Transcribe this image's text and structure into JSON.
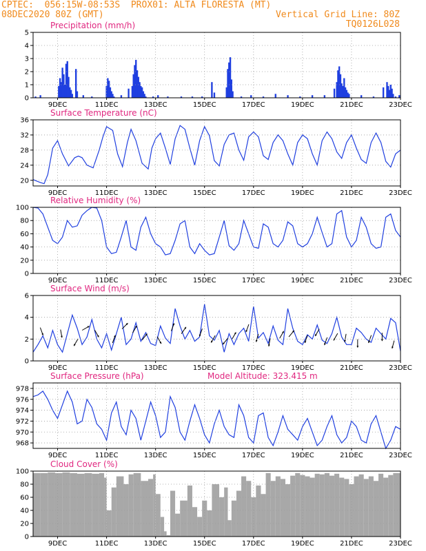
{
  "header": {
    "line1_left": "CPTEC:  056:15W-08:53S  PROX01: ALTA FLORESTA (MT)",
    "line2_left": "08DEC2020 80Z (GMT)",
    "line2_right": "Vertical Grid Line: 80Z",
    "line3_right": "TQ0126L028"
  },
  "colors": {
    "line": "#1f3fe0",
    "bar": "#1f3fe0",
    "cloud": "#a8a8a8",
    "title": "#e0267f",
    "header": "#f08a1c"
  },
  "x_axis": {
    "range_days": [
      8,
      23
    ],
    "tick_days": [
      9,
      11,
      13,
      15,
      17,
      19,
      21,
      23
    ],
    "tick_labels": [
      "9DEC",
      "11DEC",
      "13DEC",
      "15DEC",
      "17DEC",
      "19DEC",
      "21DEC",
      "23DEC"
    ]
  },
  "chart_data": [
    {
      "id": "precip",
      "type": "bar",
      "title": "Precipitation (mm/h)",
      "ylim": [
        0,
        5
      ],
      "yticks": [
        0,
        1,
        2,
        3,
        4,
        5
      ],
      "ytick_labels": [
        "0",
        "1",
        "2",
        "3",
        "4",
        "5"
      ],
      "x_unit": "day of December 2020",
      "x": [
        8.1,
        8.3,
        9.05,
        9.1,
        9.15,
        9.2,
        9.25,
        9.3,
        9.35,
        9.4,
        9.45,
        9.5,
        9.55,
        9.6,
        9.75,
        9.8,
        10.05,
        10.4,
        11.0,
        11.05,
        11.1,
        11.15,
        11.2,
        11.25,
        11.3,
        11.6,
        11.9,
        12.05,
        12.1,
        12.15,
        12.2,
        12.25,
        12.3,
        12.35,
        12.4,
        12.45,
        12.5,
        12.55,
        12.6,
        12.9,
        13.1,
        13.5,
        14.05,
        14.5,
        14.9,
        15.3,
        15.4,
        15.9,
        15.95,
        16.0,
        16.05,
        16.1,
        16.15,
        16.5,
        16.9,
        17.4,
        17.9,
        18.4,
        18.9,
        19.4,
        19.9,
        20.3,
        20.4,
        20.45,
        20.5,
        20.55,
        20.6,
        20.65,
        20.7,
        20.75,
        20.8,
        20.85,
        20.9,
        21.4,
        21.9,
        22.3,
        22.45,
        22.5,
        22.55,
        22.6,
        22.65,
        22.7,
        22.8,
        22.95
      ],
      "values": [
        0.1,
        0.2,
        0.9,
        1.5,
        1.2,
        2.3,
        1.8,
        1.0,
        2.6,
        2.8,
        1.6,
        0.8,
        0.6,
        0.3,
        2.2,
        0.5,
        0.2,
        0.1,
        0.9,
        1.5,
        1.3,
        0.8,
        0.5,
        0.3,
        0.1,
        0.2,
        0.7,
        0.9,
        1.8,
        2.5,
        2.9,
        2.1,
        1.6,
        1.2,
        0.9,
        0.8,
        0.5,
        0.3,
        0.1,
        0.1,
        0.2,
        0.1,
        0.1,
        0.1,
        0.1,
        1.2,
        0.4,
        0.8,
        2.2,
        2.7,
        3.1,
        1.4,
        0.5,
        0.1,
        0.2,
        0.1,
        0.3,
        0.2,
        0.1,
        0.2,
        0.2,
        0.7,
        1.2,
        2.1,
        2.4,
        1.8,
        1.1,
        0.9,
        1.5,
        0.8,
        0.6,
        0.4,
        0.3,
        0.2,
        0.1,
        0.8,
        1.2,
        0.9,
        0.6,
        1.0,
        0.7,
        0.3,
        0.1,
        0.2
      ]
    },
    {
      "id": "temp",
      "type": "line",
      "title": "Surface Temperature (nC)",
      "ylim": [
        18.5,
        36
      ],
      "yticks": [
        20,
        24,
        28,
        32,
        36
      ],
      "ytick_labels": [
        "20",
        "24",
        "28",
        "32",
        "36"
      ],
      "x": [
        8.0,
        8.15,
        8.3,
        8.45,
        8.6,
        8.7,
        8.8,
        9.0,
        9.2,
        9.45,
        9.7,
        9.85,
        10.0,
        10.2,
        10.45,
        10.7,
        10.85,
        11.0,
        11.25,
        11.45,
        11.65,
        11.85,
        12.0,
        12.2,
        12.45,
        12.7,
        12.85,
        13.0,
        13.2,
        13.4,
        13.6,
        13.8,
        14.0,
        14.2,
        14.4,
        14.6,
        14.8,
        15.0,
        15.2,
        15.4,
        15.6,
        15.8,
        16.0,
        16.2,
        16.4,
        16.6,
        16.8,
        17.0,
        17.2,
        17.4,
        17.6,
        17.8,
        18.0,
        18.2,
        18.4,
        18.6,
        18.8,
        19.0,
        19.2,
        19.4,
        19.6,
        19.8,
        20.0,
        20.2,
        20.4,
        20.6,
        20.8,
        21.0,
        21.2,
        21.4,
        21.6,
        21.8,
        22.0,
        22.2,
        22.4,
        22.6,
        22.8,
        23.0
      ],
      "values": [
        20.2,
        19.8,
        19.4,
        19.1,
        21.5,
        25.0,
        28.5,
        30.5,
        27.0,
        23.8,
        26.0,
        26.4,
        26.0,
        24.0,
        23.3,
        28.0,
        31.5,
        34.2,
        33.2,
        27.0,
        23.6,
        30.0,
        33.5,
        30.5,
        24.5,
        23.0,
        28.5,
        31.0,
        32.5,
        28.5,
        24.2,
        31.0,
        34.5,
        33.5,
        28.5,
        24.0,
        30.5,
        34.2,
        31.8,
        25.2,
        23.8,
        29.5,
        32.0,
        32.5,
        28.0,
        25.3,
        31.5,
        32.8,
        31.5,
        26.5,
        25.5,
        30.0,
        32.0,
        30.5,
        27.0,
        24.0,
        30.0,
        32.0,
        31.0,
        27.0,
        24.0,
        30.5,
        32.8,
        31.0,
        27.5,
        25.8,
        30.0,
        32.0,
        28.5,
        25.5,
        24.5,
        30.0,
        32.5,
        30.0,
        25.0,
        23.5,
        27.0,
        28.0
      ]
    },
    {
      "id": "rh",
      "type": "line",
      "title": "Relative Humidity (%)",
      "ylim": [
        0,
        100
      ],
      "yticks": [
        0,
        20,
        40,
        60,
        80,
        100
      ],
      "ytick_labels": [
        "0",
        "20",
        "40",
        "60",
        "80",
        "100"
      ],
      "x": [
        8.0,
        8.2,
        8.4,
        8.6,
        8.8,
        9.0,
        9.2,
        9.4,
        9.6,
        9.8,
        10.0,
        10.2,
        10.4,
        10.6,
        10.8,
        11.0,
        11.2,
        11.4,
        11.6,
        11.8,
        12.0,
        12.2,
        12.4,
        12.6,
        12.8,
        13.0,
        13.2,
        13.4,
        13.6,
        13.8,
        14.0,
        14.2,
        14.4,
        14.6,
        14.8,
        15.0,
        15.2,
        15.4,
        15.6,
        15.8,
        16.0,
        16.2,
        16.4,
        16.6,
        16.8,
        17.0,
        17.2,
        17.4,
        17.6,
        17.8,
        18.0,
        18.2,
        18.4,
        18.6,
        18.8,
        19.0,
        19.2,
        19.4,
        19.6,
        19.8,
        20.0,
        20.2,
        20.4,
        20.6,
        20.8,
        21.0,
        21.2,
        21.4,
        21.6,
        21.8,
        22.0,
        22.2,
        22.4,
        22.6,
        22.8,
        23.0
      ],
      "values": [
        100,
        99,
        90,
        70,
        50,
        45,
        55,
        80,
        70,
        72,
        88,
        95,
        100,
        99,
        80,
        40,
        30,
        32,
        55,
        80,
        40,
        35,
        70,
        85,
        60,
        45,
        40,
        28,
        30,
        50,
        75,
        80,
        40,
        30,
        45,
        35,
        28,
        30,
        55,
        80,
        42,
        35,
        45,
        80,
        60,
        40,
        38,
        75,
        70,
        45,
        40,
        50,
        78,
        72,
        45,
        40,
        45,
        60,
        85,
        62,
        40,
        45,
        90,
        95,
        55,
        40,
        50,
        85,
        70,
        45,
        38,
        40,
        85,
        90,
        65,
        55
      ]
    },
    {
      "id": "wind",
      "type": "line",
      "title": "Surface Wind (m/s)",
      "ylim": [
        0,
        6
      ],
      "yticks": [
        0,
        2,
        4,
        6
      ],
      "ytick_labels": [
        "0",
        "2",
        "4",
        "6"
      ],
      "x": [
        8.0,
        8.2,
        8.4,
        8.6,
        8.8,
        9.0,
        9.2,
        9.4,
        9.6,
        9.8,
        10.0,
        10.2,
        10.4,
        10.6,
        10.8,
        11.0,
        11.2,
        11.4,
        11.6,
        11.8,
        12.0,
        12.2,
        12.4,
        12.6,
        12.8,
        13.0,
        13.2,
        13.4,
        13.6,
        13.8,
        14.0,
        14.2,
        14.4,
        14.6,
        14.8,
        15.0,
        15.2,
        15.4,
        15.6,
        15.8,
        16.0,
        16.2,
        16.4,
        16.6,
        16.8,
        17.0,
        17.2,
        17.4,
        17.6,
        17.8,
        18.0,
        18.2,
        18.4,
        18.6,
        18.8,
        19.0,
        19.2,
        19.4,
        19.6,
        19.8,
        20.0,
        20.2,
        20.4,
        20.6,
        20.8,
        21.0,
        21.2,
        21.4,
        21.6,
        21.8,
        22.0,
        22.2,
        22.4,
        22.6,
        22.8,
        23.0
      ],
      "values": [
        0.8,
        1.5,
        2.3,
        1.2,
        2.8,
        1.5,
        0.8,
        2.5,
        4.2,
        3.0,
        1.5,
        2.2,
        3.8,
        2.0,
        1.2,
        2.5,
        1.0,
        2.5,
        4.0,
        1.5,
        2.0,
        3.5,
        1.8,
        2.6,
        1.6,
        1.4,
        3.2,
        2.1,
        1.6,
        4.8,
        3.2,
        2.0,
        2.8,
        1.8,
        2.2,
        5.2,
        2.3,
        1.9,
        2.8,
        0.8,
        2.5,
        1.5,
        2.5,
        3.0,
        1.8,
        5.0,
        2.1,
        2.6,
        1.6,
        3.2,
        1.9,
        1.5,
        4.8,
        3.0,
        1.8,
        1.5,
        2.4,
        2.0,
        3.3,
        1.9,
        1.6,
        2.5,
        4.0,
        2.2,
        1.5,
        1.5,
        3.0,
        2.6,
        2.0,
        1.7,
        3.0,
        2.5,
        2.0,
        3.9,
        3.5,
        0.9
      ],
      "arrows": {
        "x": [
          8.35,
          9.15,
          9.75,
          10.15,
          10.6,
          11.3,
          11.75,
          12.15,
          12.55,
          13.15,
          13.7,
          14.15,
          14.85,
          15.35,
          15.85,
          16.2,
          16.75,
          17.15,
          17.65,
          18.15,
          18.55,
          19.15,
          19.6,
          19.95,
          20.35,
          20.75,
          21.25,
          21.75,
          22.25,
          22.7
        ],
        "y": [
          2.7,
          2.5,
          1.7,
          3.0,
          2.5,
          2.0,
          3.2,
          2.9,
          2.2,
          1.9,
          3.1,
          2.8,
          2.6,
          2.0,
          1.8,
          2.3,
          3.0,
          2.1,
          1.7,
          2.4,
          2.5,
          2.0,
          2.6,
          1.8,
          2.2,
          2.1,
          1.6,
          2.0,
          2.2,
          1.5
        ],
        "dir_deg": [
          160,
          170,
          210,
          60,
          150,
          20,
          45,
          30,
          40,
          150,
          20,
          35,
          200,
          210,
          220,
          30,
          200,
          195,
          190,
          30,
          40,
          200,
          210,
          200,
          210,
          190,
          180,
          200,
          180,
          195
        ]
      }
    },
    {
      "id": "pres",
      "type": "line",
      "title": "Surface Pressure (hPa)",
      "annotation": "Model Altitude: 323.415 m",
      "ylim": [
        967,
        979
      ],
      "yticks": [
        968,
        970,
        972,
        974,
        976,
        978
      ],
      "ytick_labels": [
        "968",
        "970",
        "972",
        "974",
        "976",
        "978"
      ],
      "x": [
        8.0,
        8.2,
        8.4,
        8.6,
        8.8,
        9.0,
        9.2,
        9.4,
        9.6,
        9.8,
        10.0,
        10.2,
        10.4,
        10.6,
        10.8,
        11.0,
        11.2,
        11.4,
        11.6,
        11.8,
        12.0,
        12.2,
        12.4,
        12.6,
        12.8,
        13.0,
        13.2,
        13.4,
        13.6,
        13.8,
        14.0,
        14.2,
        14.4,
        14.6,
        14.8,
        15.0,
        15.2,
        15.4,
        15.6,
        15.8,
        16.0,
        16.2,
        16.4,
        16.6,
        16.8,
        17.0,
        17.2,
        17.4,
        17.6,
        17.8,
        18.0,
        18.2,
        18.4,
        18.6,
        18.8,
        19.0,
        19.2,
        19.4,
        19.6,
        19.8,
        20.0,
        20.2,
        20.4,
        20.6,
        20.8,
        21.0,
        21.2,
        21.4,
        21.6,
        21.8,
        22.0,
        22.2,
        22.4,
        22.6,
        22.8,
        23.0
      ],
      "values": [
        976.5,
        976.8,
        977.5,
        976.0,
        974.0,
        972.5,
        975.0,
        977.5,
        975.5,
        971.5,
        972.0,
        976.0,
        974.5,
        971.5,
        970.5,
        968.5,
        973.5,
        975.5,
        971.0,
        969.5,
        974.0,
        972.5,
        968.5,
        972.0,
        975.5,
        973.0,
        969.0,
        970.0,
        976.5,
        974.5,
        970.0,
        968.5,
        972.0,
        975.0,
        972.5,
        969.5,
        968.0,
        971.5,
        974.0,
        971.0,
        969.5,
        969.0,
        975.0,
        973.0,
        969.0,
        968.0,
        973.0,
        973.5,
        969.0,
        967.5,
        970.0,
        973.0,
        970.5,
        969.5,
        968.5,
        971.0,
        972.5,
        970.0,
        967.5,
        968.5,
        971.0,
        973.0,
        969.5,
        968.0,
        969.0,
        972.0,
        971.0,
        968.5,
        968.0,
        971.5,
        973.0,
        970.0,
        967.0,
        968.5,
        971.0,
        970.5
      ]
    },
    {
      "id": "cloud",
      "type": "area",
      "title": "Cloud Cover (%)",
      "ylim": [
        0,
        100
      ],
      "yticks": [
        0,
        20,
        40,
        60,
        80,
        100
      ],
      "ytick_labels": [
        "0",
        "20",
        "40",
        "60",
        "80",
        "100"
      ],
      "x": [
        8.0,
        8.3,
        8.6,
        8.9,
        9.2,
        9.5,
        9.8,
        10.1,
        10.4,
        10.7,
        10.9,
        11.0,
        11.2,
        11.4,
        11.7,
        11.9,
        12.1,
        12.4,
        12.7,
        12.9,
        13.0,
        13.2,
        13.35,
        13.45,
        13.6,
        13.8,
        14.0,
        14.3,
        14.5,
        14.7,
        14.9,
        15.1,
        15.3,
        15.6,
        15.8,
        15.95,
        16.1,
        16.3,
        16.5,
        16.7,
        16.9,
        17.1,
        17.3,
        17.5,
        17.7,
        17.9,
        18.1,
        18.3,
        18.5,
        18.7,
        18.9,
        19.1,
        19.3,
        19.5,
        19.7,
        19.9,
        20.1,
        20.3,
        20.5,
        20.7,
        20.9,
        21.1,
        21.3,
        21.5,
        21.7,
        21.9,
        22.1,
        22.3,
        22.5,
        22.7,
        23.0
      ],
      "values": [
        97,
        97,
        98,
        97,
        98,
        97,
        96,
        97,
        96,
        97,
        90,
        40,
        75,
        92,
        80,
        95,
        97,
        85,
        88,
        95,
        65,
        30,
        8,
        2,
        70,
        35,
        55,
        78,
        45,
        30,
        55,
        40,
        80,
        60,
        75,
        25,
        55,
        70,
        92,
        85,
        60,
        78,
        65,
        97,
        85,
        92,
        88,
        80,
        93,
        97,
        94,
        92,
        90,
        96,
        95,
        97,
        93,
        96,
        90,
        88,
        80,
        92,
        95,
        88,
        92,
        85,
        96,
        90,
        94,
        97,
        97
      ]
    }
  ]
}
